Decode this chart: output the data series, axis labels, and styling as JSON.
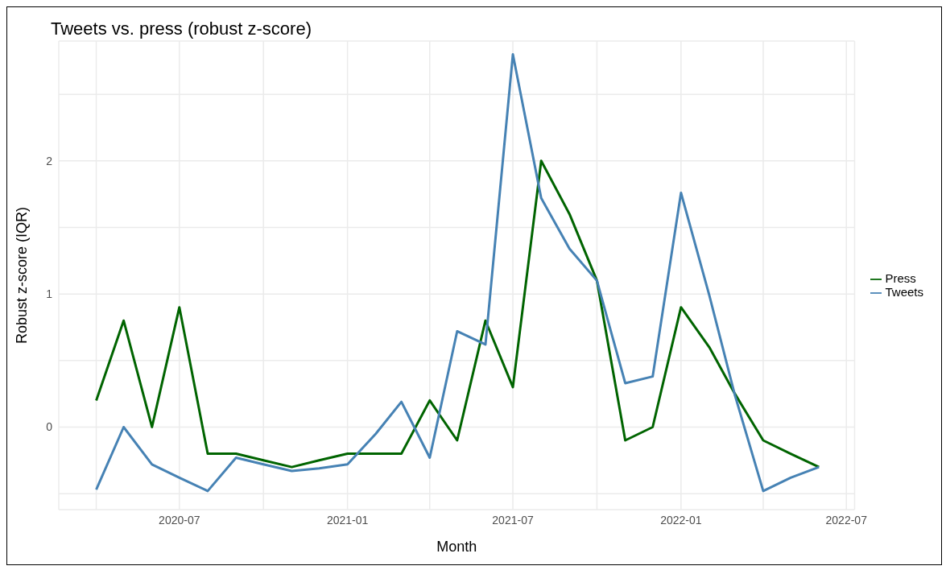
{
  "chart_data": {
    "type": "line",
    "title": "Tweets vs. press (robust z-score)",
    "xlabel": "Month",
    "ylabel": "Robust z-score (IQR)",
    "x": [
      "2020-04",
      "2020-05",
      "2020-06",
      "2020-07",
      "2020-08",
      "2020-09",
      "2020-10",
      "2020-11",
      "2020-12",
      "2021-01",
      "2021-02",
      "2021-03",
      "2021-04",
      "2021-05",
      "2021-06",
      "2021-07",
      "2021-08",
      "2021-09",
      "2021-10",
      "2021-11",
      "2021-12",
      "2022-01",
      "2022-02",
      "2022-03",
      "2022-04",
      "2022-05",
      "2022-06"
    ],
    "series": [
      {
        "name": "Press",
        "color": "#006400",
        "values": [
          0.2,
          0.8,
          0,
          0.9,
          -0.2,
          -0.2,
          -0.25,
          -0.3,
          -0.25,
          -0.2,
          -0.2,
          -0.2,
          0.2,
          -0.1,
          0.8,
          0.3,
          2.0,
          1.6,
          1.1,
          -0.1,
          0,
          0.9,
          0.6,
          0.25,
          -0.1,
          -0.2,
          -0.3
        ]
      },
      {
        "name": "Tweets",
        "color": "#4682b4",
        "values": [
          -0.47,
          0,
          -0.28,
          -0.38,
          -0.48,
          -0.23,
          -0.28,
          -0.33,
          -0.31,
          -0.28,
          -0.05,
          0.19,
          -0.23,
          0.72,
          0.62,
          2.8,
          1.72,
          1.34,
          1.1,
          0.33,
          0.38,
          1.76,
          0.99,
          0.24,
          -0.48,
          -0.38,
          -0.3
        ]
      }
    ],
    "xlim": [
      "2020-02-20",
      "2022-07-10"
    ],
    "xticks": [
      {
        "value": "2020-04",
        "label": null
      },
      "2020-07",
      {
        "value": "2020-10",
        "label": null
      },
      "2021-01",
      {
        "value": "2021-04",
        "label": null
      },
      "2021-07",
      {
        "value": "2021-10",
        "label": null
      },
      "2022-01",
      {
        "value": "2022-04",
        "label": null
      },
      "2022-07"
    ],
    "ylim": [
      -0.62,
      2.9
    ],
    "yticks": [
      {
        "value": -0.5,
        "label": null
      },
      0,
      {
        "value": 0.5,
        "label": null
      },
      1,
      {
        "value": 1.5,
        "label": null
      },
      2,
      {
        "value": 2.5,
        "label": null
      }
    ],
    "grid": true,
    "legend": "right",
    "line_style": "solid",
    "marker": "none"
  }
}
